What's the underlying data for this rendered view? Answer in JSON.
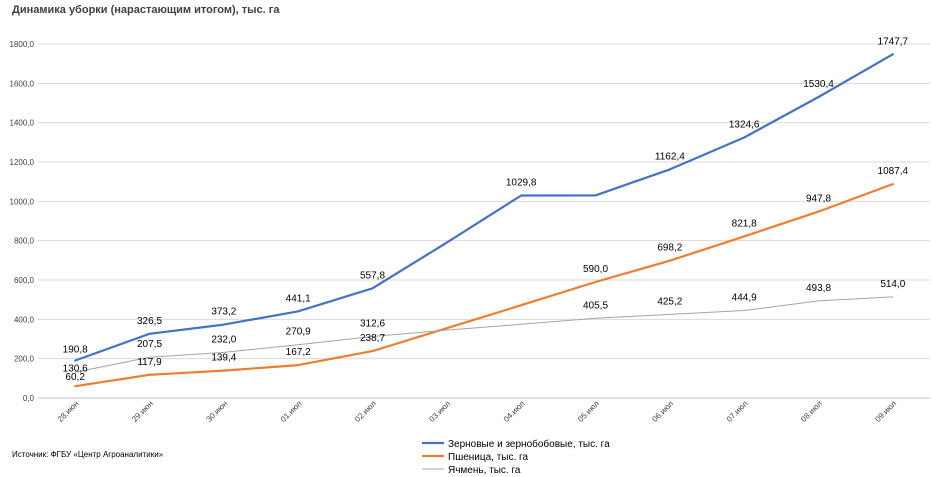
{
  "chart_data": {
    "type": "line",
    "title": "Динамика уборки (нарастающим итогом), тыс. га",
    "source": "Источник: ФГБУ «Центр Агроаналитики»",
    "categories": [
      "28.июн",
      "29.июн",
      "30.июн",
      "01.июл",
      "02.июл",
      "03.июл",
      "04.июл",
      "05.июл",
      "06.июл",
      "07.июл",
      "08.июл",
      "09.июл"
    ],
    "ylim": [
      0,
      1800
    ],
    "y_ticks": [
      "0,0",
      "200,0",
      "400,0",
      "600,0",
      "800,0",
      "1000,0",
      "1200,0",
      "1400,0",
      "1600,0",
      "1800,0"
    ],
    "grid": true,
    "legend_position": "bottom-right",
    "series": [
      {
        "name": "Зерновые и зернобобовые, тыс. га",
        "color": "#4472c4",
        "values": [
          190.8,
          326.5,
          373.2,
          441.1,
          557.8,
          790,
          1029.8,
          1030,
          1162.4,
          1324.6,
          1530.4,
          1747.7
        ],
        "labels": [
          "190,8",
          "326,5",
          "373,2",
          "441,1",
          "557,8",
          null,
          "1029,8",
          null,
          "1162,4",
          "1324,6",
          "1530,4",
          "1747,7"
        ]
      },
      {
        "name": "Пшеница, тыс. га",
        "color": "#ed7d31",
        "values": [
          60.2,
          117.9,
          139.4,
          167.2,
          238.7,
          355,
          472,
          590.0,
          698.2,
          821.8,
          947.8,
          1087.4
        ],
        "labels": [
          "60,2",
          "117,9",
          "139,4",
          "167,2",
          "238,7",
          null,
          null,
          "590,0",
          "698,2",
          "821,8",
          "947,8",
          "1087,4"
        ]
      },
      {
        "name": "Ячмень, тыс. га",
        "color": "#a5a5a5",
        "values": [
          130.6,
          207.5,
          232.0,
          270.9,
          312.6,
          345,
          375,
          405.5,
          425.2,
          444.9,
          493.8,
          514.0
        ],
        "labels": [
          "130,6",
          "207,5",
          "232,0",
          "270,9",
          "312,6",
          null,
          null,
          "405,5",
          "425,2",
          "444,9",
          "493,8",
          "514,0"
        ]
      }
    ]
  }
}
